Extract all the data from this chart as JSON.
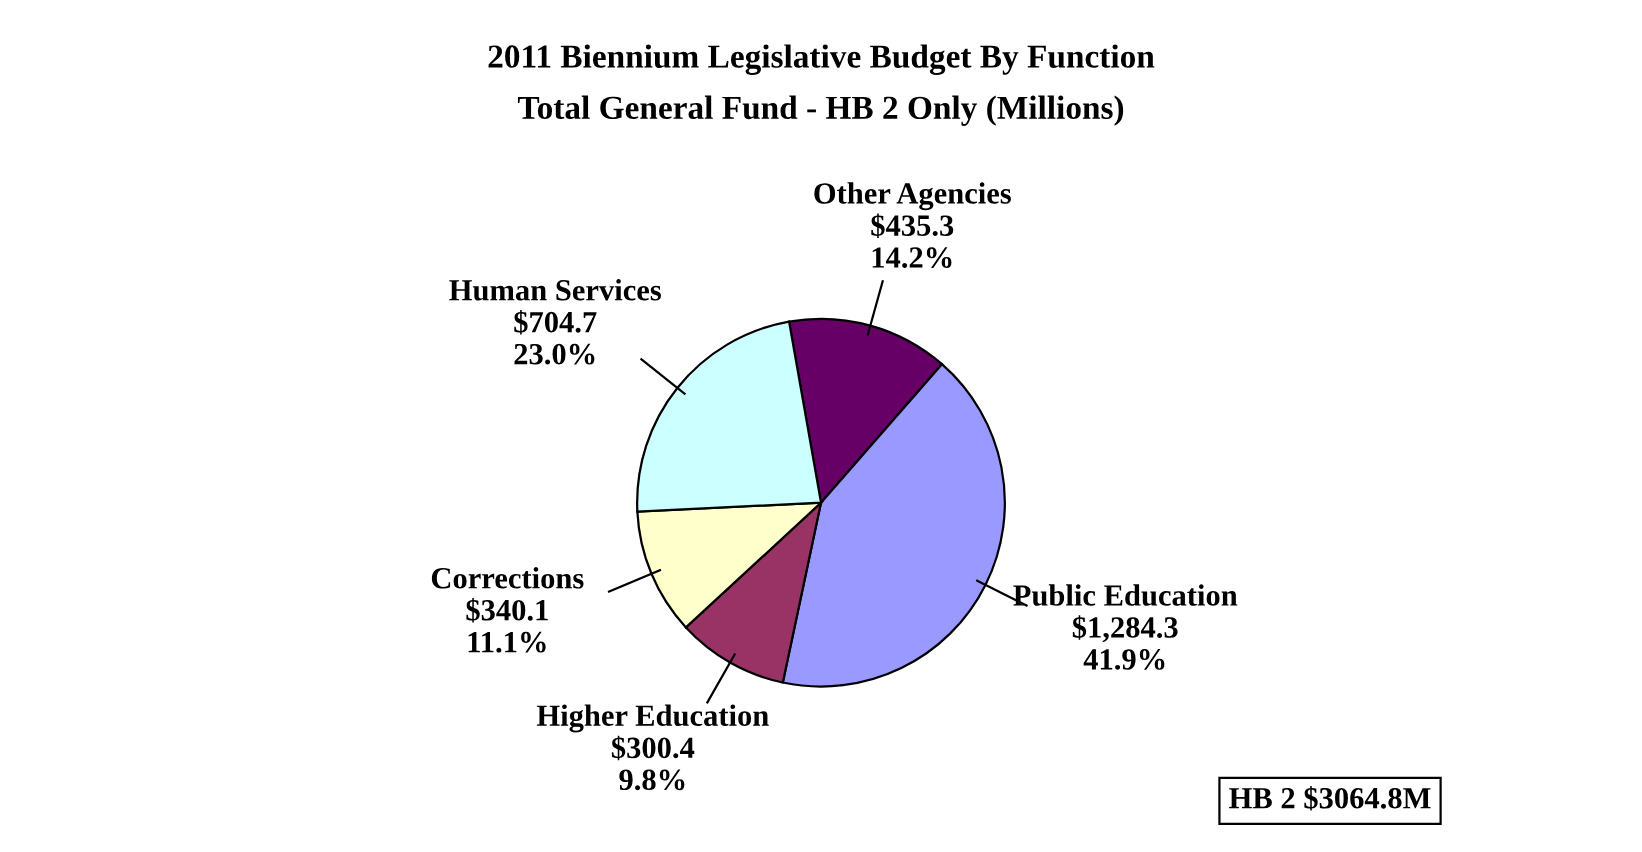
{
  "chart_data": {
    "type": "pie",
    "title": "2011 Biennium Legislative Budget By Function",
    "subtitle": "Total General Fund - HB 2 Only (Millions)",
    "categories": [
      "Other Agencies",
      "Public Education",
      "Higher Education",
      "Corrections",
      "Human Services"
    ],
    "values": [
      435.3,
      1284.3,
      300.4,
      340.1,
      704.7
    ],
    "value_labels": [
      "$435.3\n14.2%",
      "$1,284.3\n41.9%",
      "$300.4\n9.8%",
      "$340.1\n11.1%",
      "$704.7\n23.0%"
    ],
    "colors": [
      "#660066",
      "#9999ff",
      "#993366",
      "#ffffcc",
      "#ccffff"
    ],
    "annotations": [
      "HB 2 $3064.8M"
    ]
  }
}
